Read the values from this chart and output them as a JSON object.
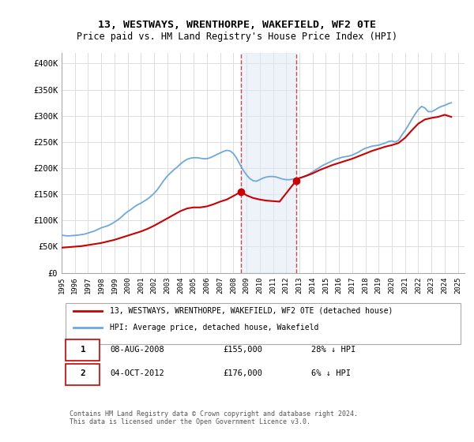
{
  "title": "13, WESTWAYS, WRENTHORPE, WAKEFIELD, WF2 0TE",
  "subtitle": "Price paid vs. HM Land Registry's House Price Index (HPI)",
  "ylabel_ticks": [
    "£0",
    "£50K",
    "£100K",
    "£150K",
    "£200K",
    "£250K",
    "£300K",
    "£350K",
    "£400K"
  ],
  "ytick_values": [
    0,
    50000,
    100000,
    150000,
    200000,
    250000,
    300000,
    350000,
    400000
  ],
  "ylim": [
    0,
    420000
  ],
  "xlim_start": 1995.0,
  "xlim_end": 2025.5,
  "sale1_date": 2008.6,
  "sale1_price": 155000,
  "sale1_label": "1",
  "sale2_date": 2012.75,
  "sale2_price": 176000,
  "sale2_label": "2",
  "hpi_color": "#6fa8dc",
  "price_color": "#cc0000",
  "shade_color": "#dce9f5",
  "shade_alpha": 0.5,
  "legend_line1": "13, WESTWAYS, WRENTHORPE, WAKEFIELD, WF2 0TE (detached house)",
  "legend_line2": "HPI: Average price, detached house, Wakefield",
  "table_row1_num": "1",
  "table_row1_date": "08-AUG-2008",
  "table_row1_price": "£155,000",
  "table_row1_hpi": "28% ↓ HPI",
  "table_row2_num": "2",
  "table_row2_date": "04-OCT-2012",
  "table_row2_price": "£176,000",
  "table_row2_hpi": "6% ↓ HPI",
  "footnote": "Contains HM Land Registry data © Crown copyright and database right 2024.\nThis data is licensed under the Open Government Licence v3.0.",
  "background_color": "#ffffff",
  "plot_bg_color": "#ffffff",
  "grid_color": "#dddddd",
  "hpi_data_x": [
    1995.0,
    1995.25,
    1995.5,
    1995.75,
    1996.0,
    1996.25,
    1996.5,
    1996.75,
    1997.0,
    1997.25,
    1997.5,
    1997.75,
    1998.0,
    1998.25,
    1998.5,
    1998.75,
    1999.0,
    1999.25,
    1999.5,
    1999.75,
    2000.0,
    2000.25,
    2000.5,
    2000.75,
    2001.0,
    2001.25,
    2001.5,
    2001.75,
    2002.0,
    2002.25,
    2002.5,
    2002.75,
    2003.0,
    2003.25,
    2003.5,
    2003.75,
    2004.0,
    2004.25,
    2004.5,
    2004.75,
    2005.0,
    2005.25,
    2005.5,
    2005.75,
    2006.0,
    2006.25,
    2006.5,
    2006.75,
    2007.0,
    2007.25,
    2007.5,
    2007.75,
    2008.0,
    2008.25,
    2008.5,
    2008.75,
    2009.0,
    2009.25,
    2009.5,
    2009.75,
    2010.0,
    2010.25,
    2010.5,
    2010.75,
    2011.0,
    2011.25,
    2011.5,
    2011.75,
    2012.0,
    2012.25,
    2012.5,
    2012.75,
    2013.0,
    2013.25,
    2013.5,
    2013.75,
    2014.0,
    2014.25,
    2014.5,
    2014.75,
    2015.0,
    2015.25,
    2015.5,
    2015.75,
    2016.0,
    2016.25,
    2016.5,
    2016.75,
    2017.0,
    2017.25,
    2017.5,
    2017.75,
    2018.0,
    2018.25,
    2018.5,
    2018.75,
    2019.0,
    2019.25,
    2019.5,
    2019.75,
    2020.0,
    2020.25,
    2020.5,
    2020.75,
    2021.0,
    2021.25,
    2021.5,
    2021.75,
    2022.0,
    2022.25,
    2022.5,
    2022.75,
    2023.0,
    2023.25,
    2023.5,
    2023.75,
    2024.0,
    2024.25,
    2024.5
  ],
  "hpi_data_y": [
    72000,
    71000,
    70500,
    71000,
    71500,
    72000,
    73000,
    74000,
    76000,
    78000,
    80000,
    83000,
    86000,
    88000,
    90000,
    93000,
    97000,
    101000,
    106000,
    112000,
    117000,
    121000,
    126000,
    130000,
    133000,
    137000,
    141000,
    146000,
    152000,
    159000,
    168000,
    177000,
    185000,
    191000,
    197000,
    202000,
    208000,
    213000,
    217000,
    219000,
    220000,
    220000,
    219000,
    218000,
    218000,
    220000,
    223000,
    226000,
    229000,
    232000,
    234000,
    233000,
    228000,
    219000,
    207000,
    196000,
    187000,
    180000,
    176000,
    175000,
    178000,
    181000,
    183000,
    184000,
    184000,
    183000,
    181000,
    179000,
    178000,
    178000,
    179000,
    180000,
    181000,
    183000,
    186000,
    189000,
    193000,
    197000,
    201000,
    205000,
    208000,
    211000,
    214000,
    217000,
    219000,
    221000,
    222000,
    223000,
    225000,
    228000,
    231000,
    235000,
    238000,
    240000,
    242000,
    243000,
    244000,
    246000,
    248000,
    251000,
    252000,
    250000,
    253000,
    263000,
    272000,
    282000,
    293000,
    303000,
    312000,
    318000,
    315000,
    308000,
    308000,
    311000,
    315000,
    318000,
    320000,
    323000,
    325000
  ],
  "price_data_x": [
    1995.0,
    1995.5,
    1996.0,
    1996.5,
    1997.0,
    1997.5,
    1998.0,
    1998.5,
    1999.0,
    1999.5,
    2000.0,
    2000.5,
    2001.0,
    2001.5,
    2002.0,
    2002.5,
    2003.0,
    2003.5,
    2004.0,
    2004.5,
    2005.0,
    2005.5,
    2006.0,
    2006.5,
    2007.0,
    2007.5,
    2008.6,
    2009.0,
    2009.5,
    2010.0,
    2010.5,
    2011.0,
    2011.5,
    2012.75,
    2013.0,
    2013.5,
    2014.0,
    2014.5,
    2015.0,
    2015.5,
    2016.0,
    2016.5,
    2017.0,
    2017.5,
    2018.0,
    2018.5,
    2019.0,
    2019.5,
    2020.0,
    2020.5,
    2021.0,
    2021.5,
    2022.0,
    2022.5,
    2023.0,
    2023.5,
    2024.0,
    2024.5
  ],
  "price_data_y": [
    48000,
    49000,
    50000,
    51000,
    53000,
    55000,
    57000,
    60000,
    63000,
    67000,
    71000,
    75000,
    79000,
    84000,
    90000,
    97000,
    104000,
    111000,
    118000,
    123000,
    125000,
    125000,
    127000,
    131000,
    136000,
    140000,
    155000,
    148000,
    143000,
    140000,
    138000,
    137000,
    136000,
    176000,
    181000,
    185000,
    190000,
    196000,
    201000,
    206000,
    210000,
    214000,
    218000,
    223000,
    228000,
    233000,
    237000,
    241000,
    244000,
    248000,
    258000,
    272000,
    285000,
    293000,
    296000,
    298000,
    302000,
    298000
  ]
}
